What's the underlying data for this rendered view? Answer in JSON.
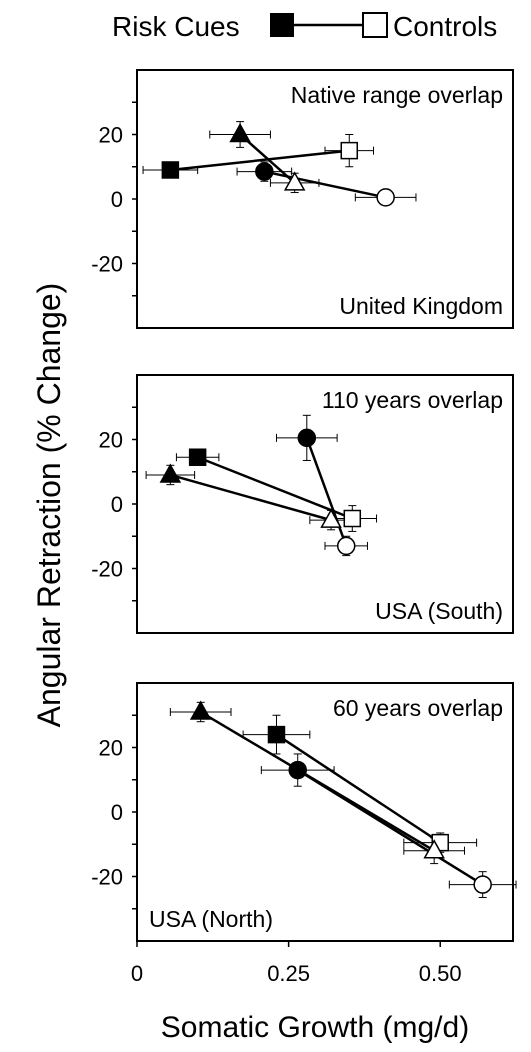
{
  "chart_data": {
    "type": "scatter",
    "legend": {
      "risk_label": "Risk Cues",
      "control_label": "Controls",
      "placement": "top"
    },
    "xlabel": "Somatic Growth (mg/d)",
    "ylabel": "Angular Retraction (% Change)",
    "xlim": [
      0,
      0.62
    ],
    "xticks": [
      {
        "value": 0,
        "label": "0"
      },
      {
        "value": 0.25,
        "label": "0.25"
      },
      {
        "value": 0.5,
        "label": "0.50"
      }
    ],
    "ylim": [
      -40,
      40
    ],
    "yticks": [
      {
        "value": 20,
        "label": "20"
      },
      {
        "value": 0,
        "label": "0"
      },
      {
        "value": -20,
        "label": "-20"
      }
    ],
    "panels": [
      {
        "title": "Native range overlap",
        "label": "United Kingdom",
        "series": [
          {
            "marker": "square",
            "risk": {
              "x": 0.055,
              "y": 9,
              "xerr": 0.045,
              "yerr": 0
            },
            "control": {
              "x": 0.35,
              "y": 15,
              "xerr": 0.04,
              "yerr": 5
            }
          },
          {
            "marker": "circle",
            "risk": {
              "x": 0.21,
              "y": 8.5,
              "xerr": 0.045,
              "yerr": 3
            },
            "control": {
              "x": 0.41,
              "y": 0.5,
              "xerr": 0.05,
              "yerr": 2
            }
          },
          {
            "marker": "triangle",
            "risk": {
              "x": 0.17,
              "y": 20,
              "xerr": 0.05,
              "yerr": 4
            },
            "control": {
              "x": 0.26,
              "y": 5,
              "xerr": 0.04,
              "yerr": 3
            }
          }
        ]
      },
      {
        "title": "110 years overlap",
        "label": "USA (South)",
        "series": [
          {
            "marker": "square",
            "risk": {
              "x": 0.1,
              "y": 14.5,
              "xerr": 0.035,
              "yerr": 2
            },
            "control": {
              "x": 0.355,
              "y": -4.5,
              "xerr": 0.04,
              "yerr": 4
            }
          },
          {
            "marker": "circle",
            "risk": {
              "x": 0.28,
              "y": 20.5,
              "xerr": 0.05,
              "yerr": 7
            },
            "control": {
              "x": 0.345,
              "y": -13,
              "xerr": 0.035,
              "yerr": 3
            }
          },
          {
            "marker": "triangle",
            "risk": {
              "x": 0.055,
              "y": 9,
              "xerr": 0.04,
              "yerr": 3
            },
            "control": {
              "x": 0.32,
              "y": -5,
              "xerr": 0.035,
              "yerr": 3
            }
          }
        ]
      },
      {
        "title": "60 years overlap",
        "label": "USA (North)",
        "series": [
          {
            "marker": "square",
            "risk": {
              "x": 0.23,
              "y": 24,
              "xerr": 0.055,
              "yerr": 6
            },
            "control": {
              "x": 0.5,
              "y": -9.5,
              "xerr": 0.06,
              "yerr": 3
            }
          },
          {
            "marker": "circle",
            "risk": {
              "x": 0.265,
              "y": 13,
              "xerr": 0.06,
              "yerr": 5
            },
            "control": {
              "x": 0.57,
              "y": -22.5,
              "xerr": 0.055,
              "yerr": 4
            }
          },
          {
            "marker": "triangle",
            "risk": {
              "x": 0.105,
              "y": 31,
              "xerr": 0.05,
              "yerr": 3
            },
            "control": {
              "x": 0.49,
              "y": -12,
              "xerr": 0.05,
              "yerr": 4
            }
          }
        ]
      }
    ]
  }
}
